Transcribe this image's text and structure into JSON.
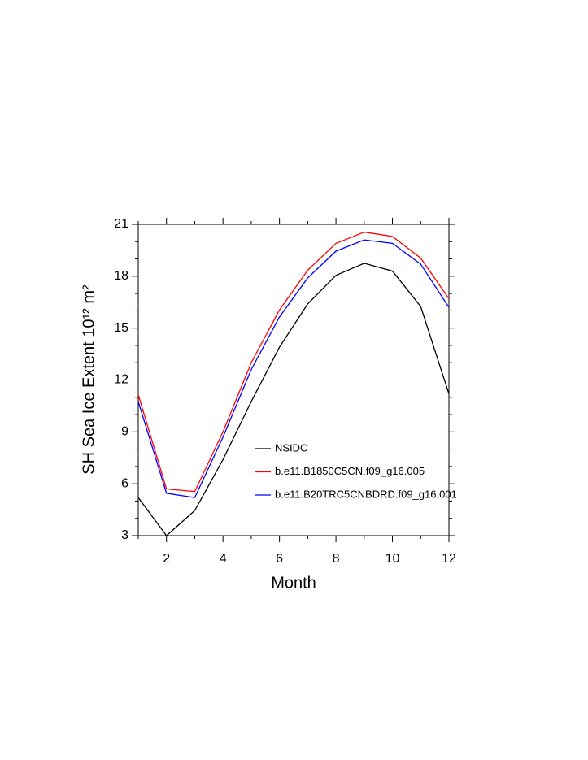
{
  "chart_data": {
    "type": "line",
    "xlabel": "Month",
    "ylabel": "SH Sea Ice Extent 10¹² m²",
    "x": [
      1,
      2,
      3,
      4,
      5,
      6,
      7,
      8,
      9,
      10,
      11,
      12
    ],
    "series": [
      {
        "name": "NSIDC",
        "color": "#000000",
        "values": [
          5.2,
          3.0,
          4.45,
          7.4,
          10.75,
          13.9,
          16.4,
          18.05,
          18.75,
          18.3,
          16.25,
          11.2
        ]
      },
      {
        "name": "b.e11.B1850C5CN.f09_g16.005",
        "color": "#ff0000",
        "values": [
          11.15,
          5.7,
          5.55,
          9.0,
          13.0,
          16.05,
          18.35,
          19.9,
          20.55,
          20.3,
          19.05,
          16.7
        ]
      },
      {
        "name": "b.e11.B20TRC5CNBDRD.f09_g16.001",
        "color": "#0000ff",
        "values": [
          10.75,
          5.45,
          5.2,
          8.7,
          12.6,
          15.65,
          17.9,
          19.45,
          20.1,
          19.9,
          18.7,
          16.2
        ]
      }
    ],
    "xlim": [
      1,
      12
    ],
    "xticks": [
      2,
      4,
      6,
      8,
      10,
      12
    ],
    "xminorticks": [
      1,
      3,
      5,
      7,
      9,
      11
    ],
    "ylim": [
      3,
      21
    ],
    "yticks": [
      3,
      6,
      9,
      12,
      15,
      18,
      21
    ],
    "yminorticks": [
      4,
      5,
      7,
      8,
      10,
      11,
      13,
      14,
      16,
      17,
      19,
      20
    ],
    "legend_loc": "lower right",
    "grid": false
  }
}
